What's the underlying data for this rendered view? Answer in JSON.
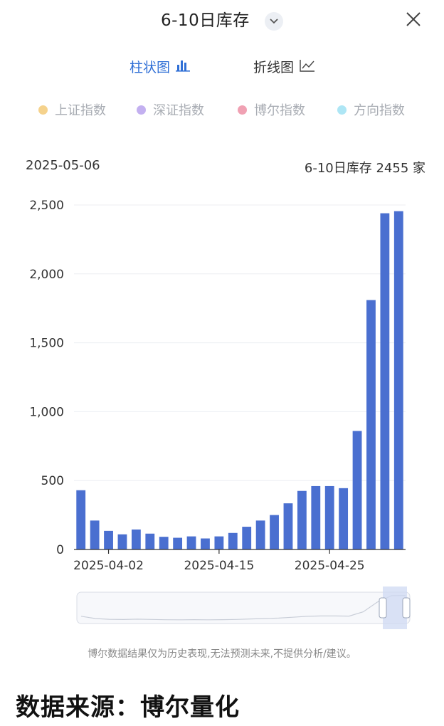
{
  "header": {
    "title": "6-10日库存"
  },
  "tabs": [
    {
      "label": "柱状图",
      "icon": "bar-chart-icon",
      "active": true
    },
    {
      "label": "折线图",
      "icon": "line-chart-icon",
      "active": false
    }
  ],
  "legend": [
    {
      "label": "上证指数",
      "color": "#f5d28c"
    },
    {
      "label": "深证指数",
      "color": "#c3b0f0"
    },
    {
      "label": "博尔指数",
      "color": "#f0a1b3"
    },
    {
      "label": "方向指数",
      "color": "#aee6f5"
    }
  ],
  "tooltip": {
    "date": "2025-05-06",
    "value": "6-10日库存 2455 家"
  },
  "colors": {
    "accent": "#2f6fd6",
    "bar": "#4a6fd0"
  },
  "chart_data": {
    "type": "bar",
    "title": "6-10日库存",
    "xlabel": "",
    "ylabel": "",
    "ylim": [
      0,
      2500
    ],
    "y_ticks": [
      "0",
      "500",
      "1,000",
      "1,500",
      "2,000",
      "2,500"
    ],
    "x_ticks": [
      "2025-04-02",
      "2025-04-15",
      "2025-04-25"
    ],
    "values": [
      430,
      210,
      135,
      110,
      145,
      115,
      92,
      85,
      95,
      80,
      95,
      120,
      165,
      210,
      250,
      335,
      425,
      460,
      460,
      445,
      860,
      1810,
      2440,
      2455
    ],
    "grid": true
  },
  "footer": {
    "disclaimer": "博尔数据结果仅为历史表现,无法预测未来,不提供分析/建议。",
    "source": "数据来源：博尔量化"
  }
}
